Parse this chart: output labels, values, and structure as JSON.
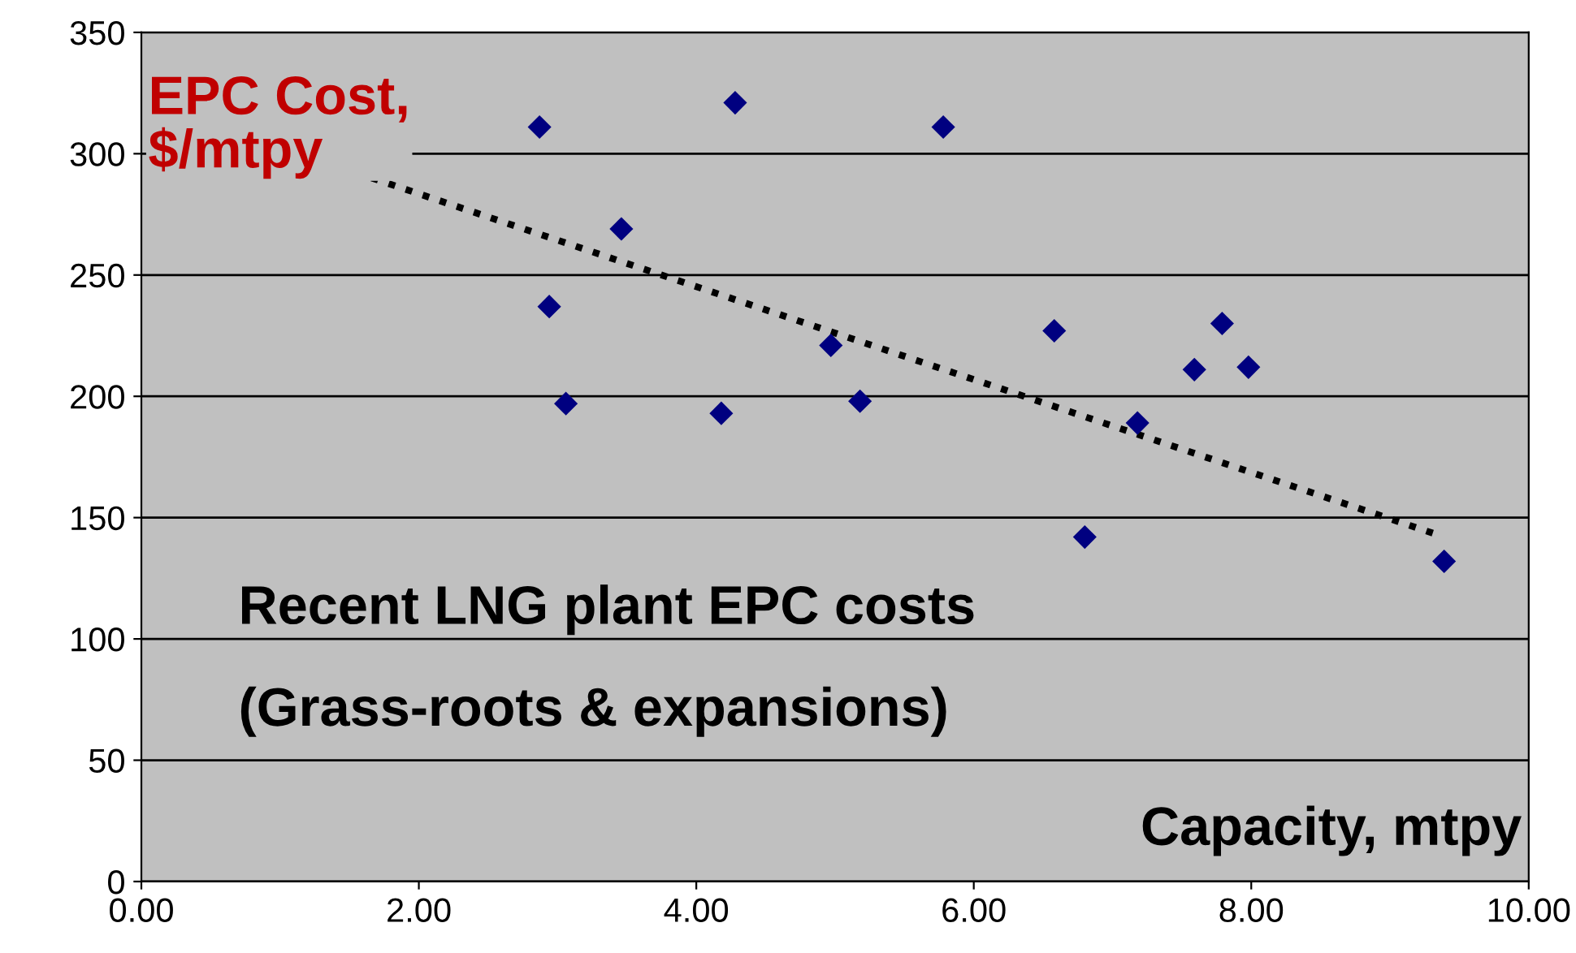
{
  "chart_data": {
    "type": "scatter",
    "ylabel": "EPC Cost,\n$/mtpy",
    "xlabel": "Capacity, mtpy",
    "annotations": [
      "Recent LNG plant EPC costs",
      "(Grass-roots & expansions)"
    ],
    "series": [
      {
        "color": "#000080",
        "marker": "diamond",
        "x": [
          2.87,
          2.94,
          3.06,
          3.46,
          4.28,
          4.18,
          4.97,
          5.18,
          5.78,
          6.58,
          6.8,
          7.18,
          7.59,
          7.79,
          7.98,
          9.39
        ],
        "values": [
          311,
          237,
          197,
          269,
          321,
          193,
          221,
          198,
          311,
          227,
          142,
          189,
          211,
          230,
          212,
          132
        ]
      },
      {
        "type": "line",
        "color": "#000000",
        "line_style": "dotted",
        "x": [
          1.66,
          9.34
        ],
        "values": [
          290,
          143
        ]
      }
    ],
    "xlim": [
      0,
      10
    ],
    "xticks": [
      {
        "value": 0,
        "label": "0.00"
      },
      {
        "value": 2,
        "label": "2.00"
      },
      {
        "value": 4,
        "label": "4.00"
      },
      {
        "value": 6,
        "label": "6.00"
      },
      {
        "value": 8,
        "label": "8.00"
      },
      {
        "value": 10,
        "label": "10.00"
      }
    ],
    "ylim": [
      0,
      350
    ],
    "yticks": [
      0,
      50,
      100,
      150,
      200,
      250,
      300,
      350
    ],
    "grid": "y"
  }
}
